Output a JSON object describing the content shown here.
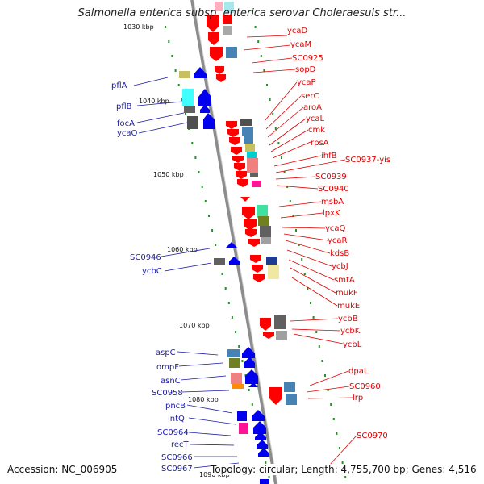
{
  "title": "Salmonella enterica subsp. enterica serovar Choleraesuis str...",
  "footer": {
    "accession": "Accession: NC_006905",
    "summary": "Topology: circular; Length: 4,755,700 bp; Genes: 4,516"
  },
  "ticks": [
    "1030 kbp",
    "1040 kbp",
    "1050 kbp",
    "1060 kbp",
    "1070 kbp",
    "1080 kbp",
    "1090 kbp"
  ],
  "right_labels": [
    "ycaD",
    "ycaM",
    "SC0925",
    "sopD",
    "ycaP",
    "serC",
    "aroA",
    "ycaL",
    "cmk",
    "rpsA",
    "ihfB",
    "SC0937-yis",
    "SC0939",
    "SC0940",
    "msbA",
    "lpxK",
    "ycaQ",
    "ycaR",
    "kdsB",
    "ycbJ",
    "smtA",
    "mukF",
    "mukE",
    "ycbB",
    "ycbK",
    "ycbL",
    "dpaL",
    "SC0960",
    "lrp",
    "SC0970"
  ],
  "left_labels": [
    "pflA",
    "pflB",
    "focA",
    "ycaO",
    "SC0946",
    "ycbC",
    "aspC",
    "ompF",
    "asnC",
    "SC0958",
    "pncB",
    "intQ",
    "SC0964",
    "recT",
    "SC0966",
    "SC0967"
  ],
  "colors": {
    "forward": "#ff0000",
    "reverse": "#0000ee",
    "backbone": "#8c8c8c",
    "tick": "#2e8b2e"
  }
}
